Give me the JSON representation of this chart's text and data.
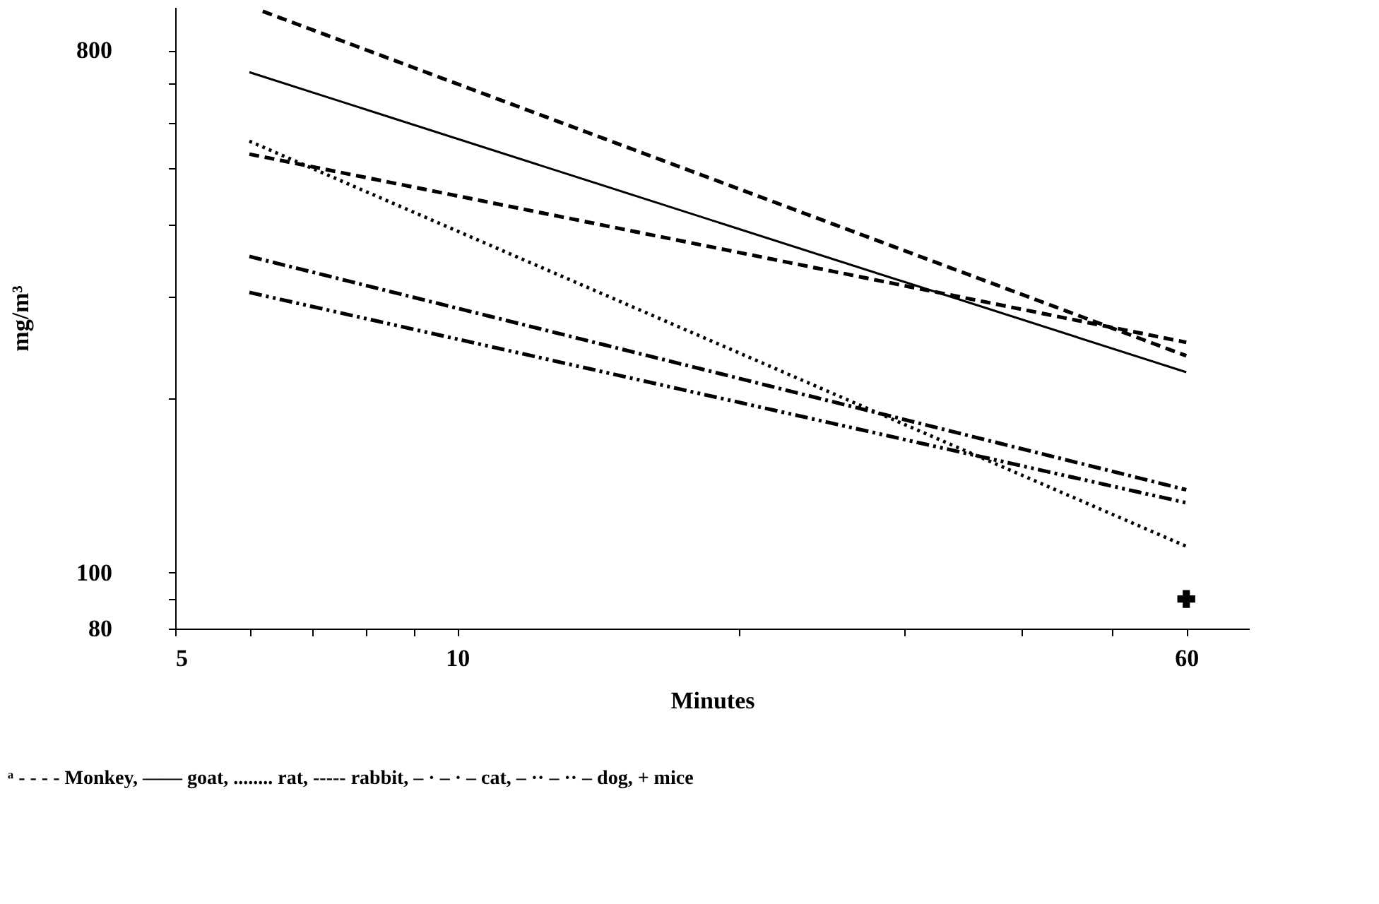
{
  "chart_data": {
    "type": "line",
    "xlabel": "Minutes",
    "ylabel": "mg/m³",
    "log": "xy",
    "grid": false,
    "xlim": [
      5,
      70
    ],
    "ylim": [
      80,
      950
    ],
    "xticks": [
      5,
      {
        "value": 6,
        "label": null
      },
      {
        "value": 7,
        "label": null
      },
      {
        "value": 8,
        "label": null
      },
      {
        "value": 9,
        "label": null
      },
      10,
      {
        "value": 20,
        "label": null
      },
      {
        "value": 30,
        "label": null
      },
      {
        "value": 40,
        "label": null
      },
      {
        "value": 50,
        "label": null
      },
      60
    ],
    "yticks": [
      80,
      {
        "value": 90,
        "label": null
      },
      100,
      {
        "value": 200,
        "label": null
      },
      {
        "value": 300,
        "label": null
      },
      {
        "value": 400,
        "label": null
      },
      {
        "value": 500,
        "label": null
      },
      {
        "value": 600,
        "label": null
      },
      {
        "value": 700,
        "label": null
      },
      800
    ],
    "series": [
      {
        "color": "#000000",
        "line_style": "dashed",
        "x": [
          6.2,
          60
        ],
        "values": [
          934,
          237
        ]
      },
      {
        "color": "#000000",
        "line_style": "solid",
        "x": [
          6,
          60
        ],
        "values": [
          733,
          222
        ]
      },
      {
        "color": "#000000",
        "line_style": "dotted",
        "x": [
          6,
          60
        ],
        "values": [
          557,
          111
        ]
      },
      {
        "color": "#000000",
        "line_style": "dashed",
        "x": [
          6,
          60
        ],
        "values": [
          529,
          250
        ]
      },
      {
        "color": "#000000",
        "line_style": "dashdot",
        "x": [
          6,
          60
        ],
        "values": [
          352,
          139
        ]
      },
      {
        "color": "#000000",
        "line_style": "dashdotdot",
        "x": [
          6,
          60
        ],
        "values": [
          305,
          132
        ]
      },
      {
        "color": "#000000",
        "type": "scatter",
        "marker": "cross",
        "x": [
          60
        ],
        "values": [
          90
        ]
      }
    ],
    "annotations": [
      "ᵃ - - - - Monkey, —— goat, ........ rat, ----- rabbit, – · – · – cat, – ·· – ·· – dog, + mice"
    ]
  }
}
